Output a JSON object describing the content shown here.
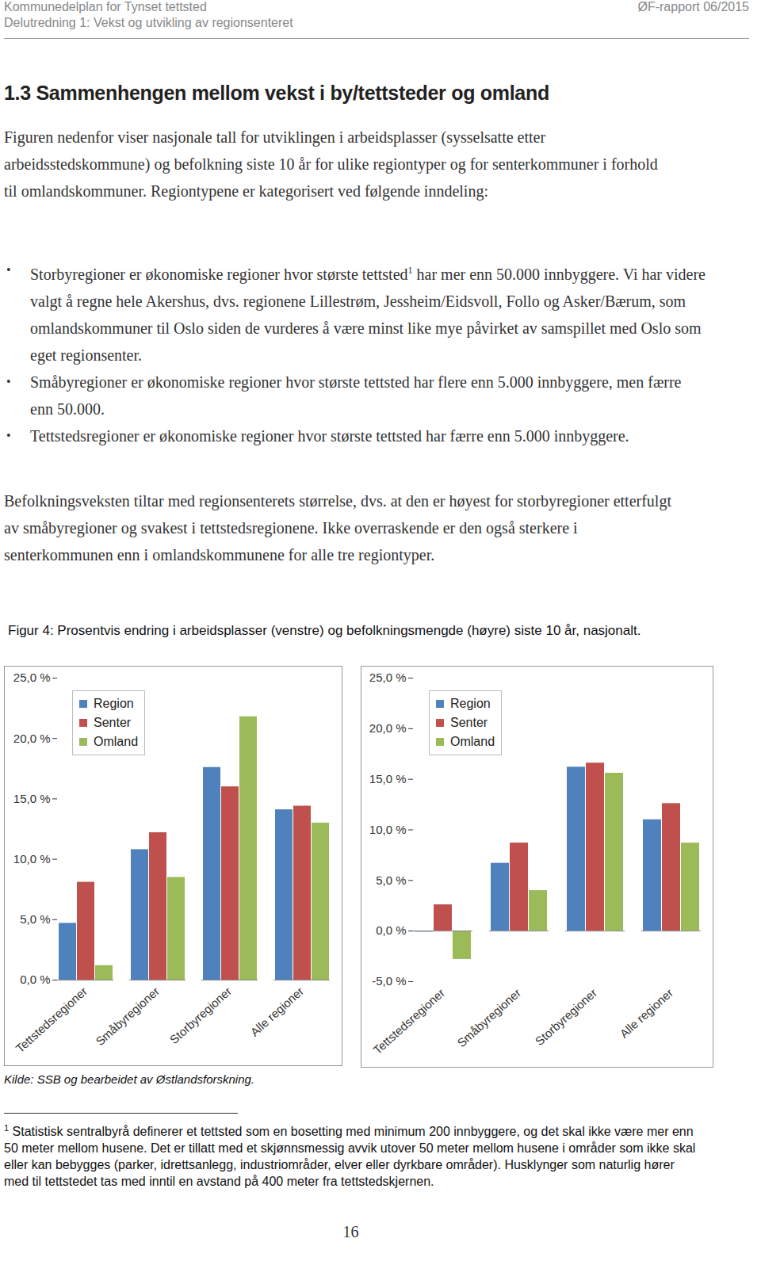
{
  "header": {
    "left": "Kommunedelplan for Tynset tettsted",
    "right": "ØF-rapport 06/2015",
    "subtitle": "Delutredning 1: Vekst og utvikling av regionsenteret"
  },
  "heading": "1.3 Sammenhengen mellom vekst i by/tettsteder og omland",
  "intro": "Figuren nedenfor viser nasjonale tall for utviklingen i arbeidsplasser (sysselsatte etter arbeidsstedskommune) og befolkning siste 10 år for ulike regiontyper og for senterkommuner i forhold til omlandskommuner. Regiontypene er kategorisert ved følgende inndeling:",
  "bullets": [
    {
      "text": "Storbyregioner er økonomiske regioner hvor største tettsted",
      "footnote_ref": "1",
      "text_after": " har mer enn 50.000 innbyggere. Vi har videre valgt å regne hele Akershus, dvs. regionene Lillestrøm, Jessheim/Eidsvoll, Follo og Asker/Bærum, som omlandskommuner til Oslo siden de vurderes å være minst like mye påvirket av samspillet med Oslo som eget regionsenter."
    },
    {
      "text": "Småbyregioner er økonomiske regioner hvor største tettsted har flere enn 5.000 innbyggere, men færre enn 50.000."
    },
    {
      "text": "Tettstedsregioner er økonomiske regioner hvor største tettsted har færre enn 5.000 innbyggere."
    }
  ],
  "conclusion": "Befolkningsveksten tiltar med regionsenterets størrelse, dvs. at den er høyest for storbyregioner etterfulgt av småbyregioner og svakest i tettstedsregionene. Ikke overraskende er den også sterkere i senterkommunen enn i omlandskommunene for alle tre regiontyper.",
  "figure_caption": "Figur 4: Prosentvis endring i arbeidsplasser (venstre) og befolkningsmengde (høyre) siste 10 år, nasjonalt.",
  "chart_data": [
    {
      "type": "bar",
      "categories": [
        "Tettstedsregioner",
        "Småbyregioner",
        "Storbyregioner",
        "Alle regioner"
      ],
      "series": [
        {
          "name": "Region",
          "color": "#4f81bd",
          "values": [
            4.7,
            10.8,
            17.6,
            14.1
          ]
        },
        {
          "name": "Senter",
          "color": "#c0504d",
          "values": [
            8.1,
            12.2,
            16.0,
            14.4
          ]
        },
        {
          "name": "Omland",
          "color": "#9bbb59",
          "values": [
            1.2,
            8.5,
            21.8,
            13.0
          ]
        }
      ],
      "ylim": [
        0,
        25
      ],
      "yticks": [
        {
          "value": 0,
          "label": "0,0 %"
        },
        {
          "value": 5,
          "label": "5,0 %"
        },
        {
          "value": 10,
          "label": "10,0 %"
        },
        {
          "value": 15,
          "label": "15,0 %"
        },
        {
          "value": 20,
          "label": "20,0 %"
        },
        {
          "value": 25,
          "label": "25,0 %"
        }
      ],
      "grid": false,
      "legend": "top-left"
    },
    {
      "type": "bar",
      "categories": [
        "Tettstedsregioner",
        "Småbyregioner",
        "Storbyregioner",
        "Alle regioner"
      ],
      "series": [
        {
          "name": "Region",
          "color": "#4f81bd",
          "values": [
            -0.1,
            6.7,
            16.2,
            11.0
          ]
        },
        {
          "name": "Senter",
          "color": "#c0504d",
          "values": [
            2.6,
            8.7,
            16.6,
            12.6
          ]
        },
        {
          "name": "Omland",
          "color": "#9bbb59",
          "values": [
            -2.8,
            4.0,
            15.6,
            8.7
          ]
        }
      ],
      "ylim": [
        -5,
        25
      ],
      "yticks": [
        {
          "value": -5,
          "label": "-5,0 %"
        },
        {
          "value": 0,
          "label": "0,0 %"
        },
        {
          "value": 5,
          "label": "5,0 %"
        },
        {
          "value": 10,
          "label": "10,0 %"
        },
        {
          "value": 15,
          "label": "15,0 %"
        },
        {
          "value": 20,
          "label": "20,0 %"
        },
        {
          "value": 25,
          "label": "25,0 %"
        }
      ],
      "grid": false,
      "legend": "top-left"
    }
  ],
  "source": "Kilde: SSB og bearbeidet av Østlandsforskning.",
  "footnote": {
    "marker": "1",
    "text": "Statistisk sentralbyrå definerer et tettsted som en bosetting med minimum 200 innbyggere, og det skal ikke være mer enn 50 meter mellom husene. Det er tillatt med et skjønnsmessig avvik utover 50 meter mellom husene i områder som ikke skal eller kan bebygges (parker, idrettsanlegg, industriområder, elver eller dyrkbare områder). Husklynger som naturlig hører med til tettstedet tas med inntil en avstand på 400 meter fra tettstedskjernen."
  },
  "page_number": "16"
}
